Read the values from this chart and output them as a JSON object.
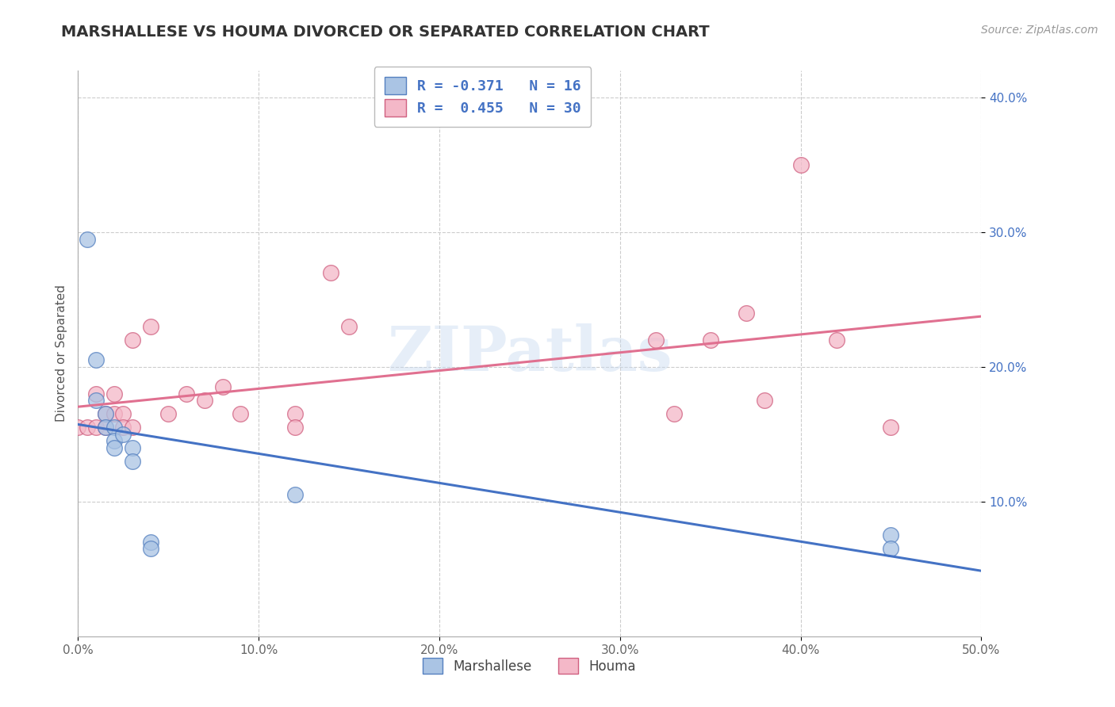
{
  "title": "MARSHALLESE VS HOUMA DIVORCED OR SEPARATED CORRELATION CHART",
  "source_text": "Source: ZipAtlas.com",
  "ylabel": "Divorced or Separated",
  "xlim": [
    0.0,
    0.5
  ],
  "ylim": [
    0.0,
    0.42
  ],
  "xtick_labels": [
    "0.0%",
    "10.0%",
    "20.0%",
    "30.0%",
    "40.0%",
    "50.0%"
  ],
  "xtick_vals": [
    0.0,
    0.1,
    0.2,
    0.3,
    0.4,
    0.5
  ],
  "ytick_labels": [
    "10.0%",
    "20.0%",
    "30.0%",
    "40.0%"
  ],
  "ytick_vals": [
    0.1,
    0.2,
    0.3,
    0.4
  ],
  "grid_color": "#cccccc",
  "background_color": "#ffffff",
  "marshallese_color": "#aac4e4",
  "marshallese_edge_color": "#5580c0",
  "marshallese_line_color": "#4472c4",
  "houma_color": "#f4b8c8",
  "houma_edge_color": "#d06080",
  "houma_line_color": "#e07090",
  "R_marshallese": -0.371,
  "N_marshallese": 16,
  "R_houma": 0.455,
  "N_houma": 30,
  "marshallese_x": [
    0.005,
    0.01,
    0.01,
    0.015,
    0.015,
    0.02,
    0.02,
    0.02,
    0.025,
    0.03,
    0.03,
    0.04,
    0.04,
    0.12,
    0.45,
    0.45
  ],
  "marshallese_y": [
    0.295,
    0.205,
    0.175,
    0.165,
    0.155,
    0.155,
    0.145,
    0.14,
    0.15,
    0.14,
    0.13,
    0.07,
    0.065,
    0.105,
    0.075,
    0.065
  ],
  "houma_x": [
    0.0,
    0.005,
    0.01,
    0.01,
    0.015,
    0.015,
    0.02,
    0.02,
    0.025,
    0.025,
    0.03,
    0.03,
    0.04,
    0.05,
    0.06,
    0.07,
    0.08,
    0.09,
    0.12,
    0.12,
    0.14,
    0.15,
    0.32,
    0.33,
    0.35,
    0.37,
    0.38,
    0.4,
    0.42,
    0.45
  ],
  "houma_y": [
    0.155,
    0.155,
    0.18,
    0.155,
    0.165,
    0.155,
    0.165,
    0.18,
    0.165,
    0.155,
    0.22,
    0.155,
    0.23,
    0.165,
    0.18,
    0.175,
    0.185,
    0.165,
    0.165,
    0.155,
    0.27,
    0.23,
    0.22,
    0.165,
    0.22,
    0.24,
    0.175,
    0.35,
    0.22,
    0.155
  ],
  "legend_box_color_marshallese": "#aac4e4",
  "legend_box_edge_marshallese": "#5580c0",
  "legend_box_color_houma": "#f4b8c8",
  "legend_box_edge_houma": "#d06080",
  "legend_text_color": "#4472c4",
  "legend_fontsize": 13,
  "title_fontsize": 14,
  "axis_label_fontsize": 11,
  "tick_fontsize": 11,
  "source_fontsize": 10
}
